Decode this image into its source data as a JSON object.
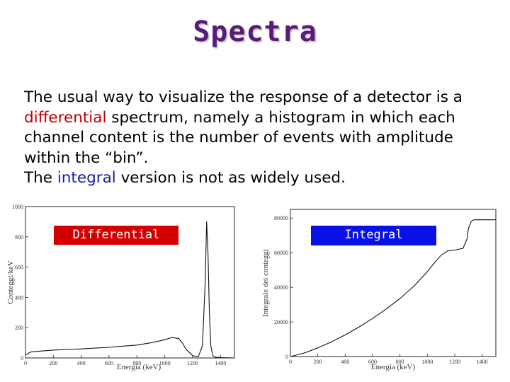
{
  "slide": {
    "title": "Spectra",
    "line1": "The usual way to visualize the response of a detector is a",
    "line2_hl": "differential",
    "line2_rest": " spectrum, namely a histogram in which each",
    "line3": "channel content is the number of events with amplitude",
    "line4": "within the “bin”.",
    "line5_pre": "The ",
    "line5_hl": "integral",
    "line5_post": " version is not as widely used.",
    "colors": {
      "title": "#5a1a7a",
      "differential": "#c00000",
      "integral": "#1a1aa8"
    }
  },
  "chart_data": [
    {
      "type": "line",
      "label_box": "Differential",
      "label_box_color": "#d40000",
      "xlabel": "Energia (keV)",
      "ylabel": "Conteggi/keV",
      "xlim": [
        0,
        1500
      ],
      "ylim": [
        0,
        1000
      ],
      "xticks": [
        "0",
        "200",
        "400",
        "600",
        "800",
        "1000",
        "1200",
        "1400"
      ],
      "yticks": [
        "0",
        "200",
        "400",
        "600",
        "800",
        "1000"
      ],
      "x": [
        0,
        40,
        100,
        200,
        300,
        400,
        500,
        600,
        700,
        800,
        900,
        1000,
        1050,
        1100,
        1130,
        1150,
        1200,
        1240,
        1270,
        1290,
        1300,
        1310,
        1320,
        1330,
        1345,
        1360,
        1400,
        1500
      ],
      "y": [
        20,
        40,
        45,
        52,
        56,
        60,
        65,
        70,
        78,
        85,
        100,
        120,
        135,
        128,
        95,
        60,
        15,
        8,
        80,
        500,
        900,
        700,
        300,
        80,
        15,
        5,
        2,
        0
      ]
    },
    {
      "type": "line",
      "label_box": "Integral",
      "label_box_color": "#0a10e8",
      "xlabel": "Energia (keV)",
      "ylabel": "Integrale dei conteggi",
      "xlim": [
        0,
        1500
      ],
      "ylim": [
        0,
        85000
      ],
      "xticks": [
        "0",
        "200",
        "400",
        "600",
        "800",
        "1000",
        "1200",
        "1400"
      ],
      "yticks": [
        "0",
        "20000",
        "40000",
        "60000",
        "80000"
      ],
      "x": [
        0,
        100,
        200,
        300,
        400,
        500,
        600,
        700,
        800,
        900,
        1000,
        1050,
        1100,
        1150,
        1200,
        1260,
        1290,
        1300,
        1320,
        1340,
        1400,
        1500
      ],
      "y": [
        0,
        2000,
        5000,
        8500,
        12500,
        17000,
        22000,
        27500,
        33500,
        40500,
        49000,
        54000,
        58500,
        61000,
        61500,
        62500,
        68000,
        74000,
        78000,
        79000,
        79000,
        79000
      ]
    }
  ]
}
